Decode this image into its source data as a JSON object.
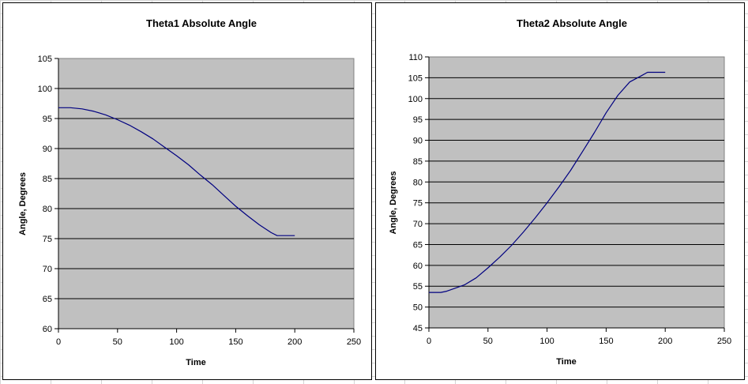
{
  "chart_data": [
    {
      "type": "line",
      "title": "Theta1 Absolute Angle",
      "xlabel": "Time",
      "ylabel": "Angle, Degrees",
      "xlim": [
        0,
        250
      ],
      "ylim": [
        60,
        105
      ],
      "xticks": [
        0,
        50,
        100,
        150,
        200,
        250
      ],
      "yticks": [
        60,
        65,
        70,
        75,
        80,
        85,
        90,
        95,
        100,
        105
      ],
      "grid": "horizontal major gridlines",
      "legend": "none",
      "colors": {
        "plot_area": "#c0c0c0",
        "line": "#000080",
        "gridline": "#000000"
      },
      "series": [
        {
          "x": [
            0,
            10,
            20,
            30,
            40,
            50,
            60,
            70,
            80,
            90,
            100,
            110,
            120,
            130,
            140,
            150,
            160,
            170,
            180,
            185,
            190,
            200
          ],
          "y": [
            96.8,
            96.8,
            96.6,
            96.2,
            95.6,
            94.8,
            93.9,
            92.8,
            91.6,
            90.2,
            88.8,
            87.3,
            85.6,
            84.0,
            82.2,
            80.4,
            78.8,
            77.3,
            76.0,
            75.5,
            75.5,
            75.5
          ]
        }
      ]
    },
    {
      "type": "line",
      "title": "Theta2 Absolute Angle",
      "xlabel": "Time",
      "ylabel": "Angle, Degrees",
      "xlim": [
        0,
        250
      ],
      "ylim": [
        45,
        110
      ],
      "xticks": [
        0,
        50,
        100,
        150,
        200,
        250
      ],
      "yticks": [
        45,
        50,
        55,
        60,
        65,
        70,
        75,
        80,
        85,
        90,
        95,
        100,
        105,
        110
      ],
      "grid": "horizontal major gridlines",
      "legend": "none",
      "colors": {
        "plot_area": "#c0c0c0",
        "line": "#000080",
        "gridline": "#000000"
      },
      "series": [
        {
          "x": [
            0,
            10,
            15,
            20,
            30,
            40,
            50,
            60,
            70,
            80,
            90,
            100,
            110,
            120,
            130,
            140,
            150,
            160,
            170,
            180,
            185,
            200
          ],
          "y": [
            53.5,
            53.5,
            53.8,
            54.3,
            55.3,
            57.0,
            59.4,
            62.0,
            64.8,
            68.0,
            71.4,
            75.0,
            78.8,
            82.8,
            87.3,
            91.8,
            96.6,
            100.8,
            104.0,
            105.5,
            106.3,
            106.3
          ]
        }
      ]
    }
  ]
}
